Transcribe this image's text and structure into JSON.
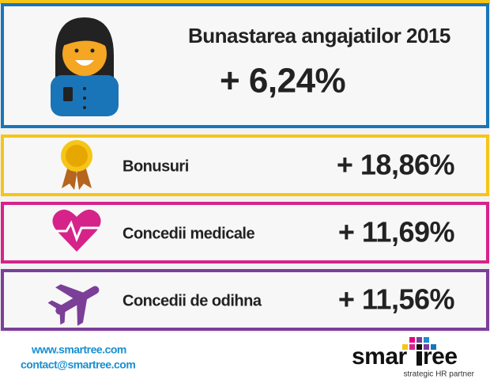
{
  "header": {
    "title": "Bunastarea angajatilor 2015",
    "value": "+ 6,24%"
  },
  "items": [
    {
      "label": "Bonusuri",
      "value": "+ 18,86%"
    },
    {
      "label": "Concedii medicale",
      "value": "+ 11,69%"
    },
    {
      "label": "Concedii de odihna",
      "value": "+ 11,56%"
    }
  ],
  "footer": {
    "website": "www.smartree.com",
    "email": "contact@smartree.com"
  },
  "logo": {
    "left": "smar",
    "right": "ree",
    "tagline": "strategic HR partner"
  }
}
